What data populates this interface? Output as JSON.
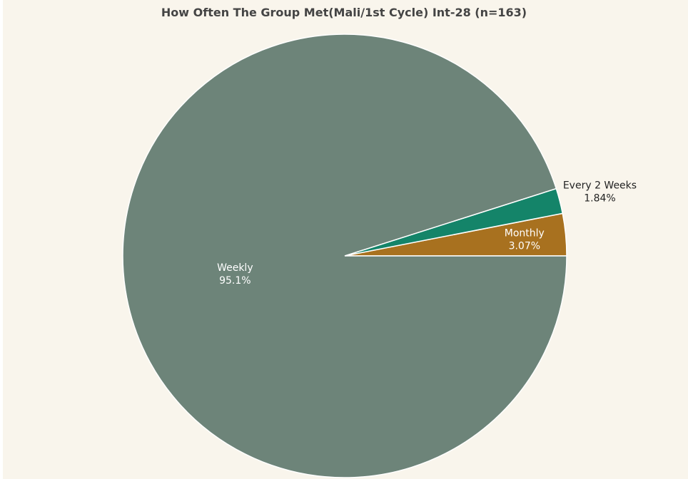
{
  "chart_data": {
    "type": "pie",
    "title": "How Often The Group Met(Mali/1st Cycle) Int-28 (n=163)",
    "slices": [
      {
        "label": "Monthly",
        "value": 3.07,
        "value_label": "3.07%",
        "color": "#a8711f",
        "label_color": "#ffffff",
        "label_placement": "inside"
      },
      {
        "label": "Every 2 Weeks",
        "value": 1.84,
        "value_label": "1.84%",
        "color": "#148469",
        "label_color": "#222222",
        "label_placement": "outside"
      },
      {
        "label": "Weekly",
        "value": 95.1,
        "value_label": "95.1%",
        "color": "#6d8479",
        "label_color": "#ffffff",
        "label_placement": "inside"
      }
    ],
    "start": "3 o'clock",
    "direction": "counterclockwise",
    "background": "#f9f5ec",
    "legend": "none"
  }
}
